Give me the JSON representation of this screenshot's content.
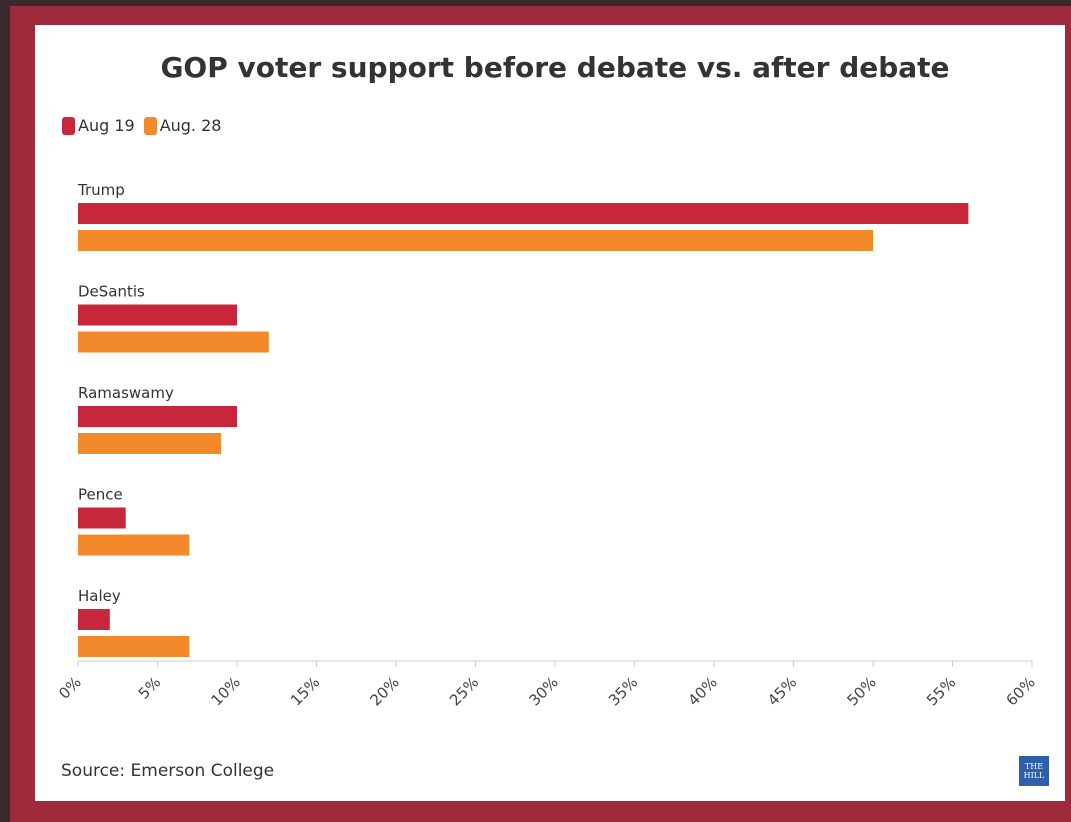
{
  "colors": {
    "frame": "#9d2a3b",
    "aug19": "#c8263a",
    "aug28": "#f28a2c",
    "logo": "#2f5fa8"
  },
  "logo_text": "THE HILL",
  "chart_data": {
    "type": "bar",
    "orientation": "horizontal",
    "title": "GOP voter support before debate vs. after debate",
    "categories": [
      "Trump",
      "DeSantis",
      "Ramaswamy",
      "Pence",
      "Haley"
    ],
    "series": [
      {
        "name": "Aug 19",
        "color": "#c8263a",
        "values": [
          56,
          10,
          10,
          3,
          2
        ]
      },
      {
        "name": "Aug. 28",
        "color": "#f28a2c",
        "values": [
          50,
          12,
          9,
          7,
          7
        ]
      }
    ],
    "xlim": [
      0,
      60
    ],
    "xticks": [
      "0%",
      "5%",
      "10%",
      "15%",
      "20%",
      "25%",
      "30%",
      "35%",
      "40%",
      "45%",
      "50%",
      "55%",
      "60%"
    ],
    "legend_position": "top-left",
    "grid": false,
    "source": "Source: Emerson College"
  }
}
